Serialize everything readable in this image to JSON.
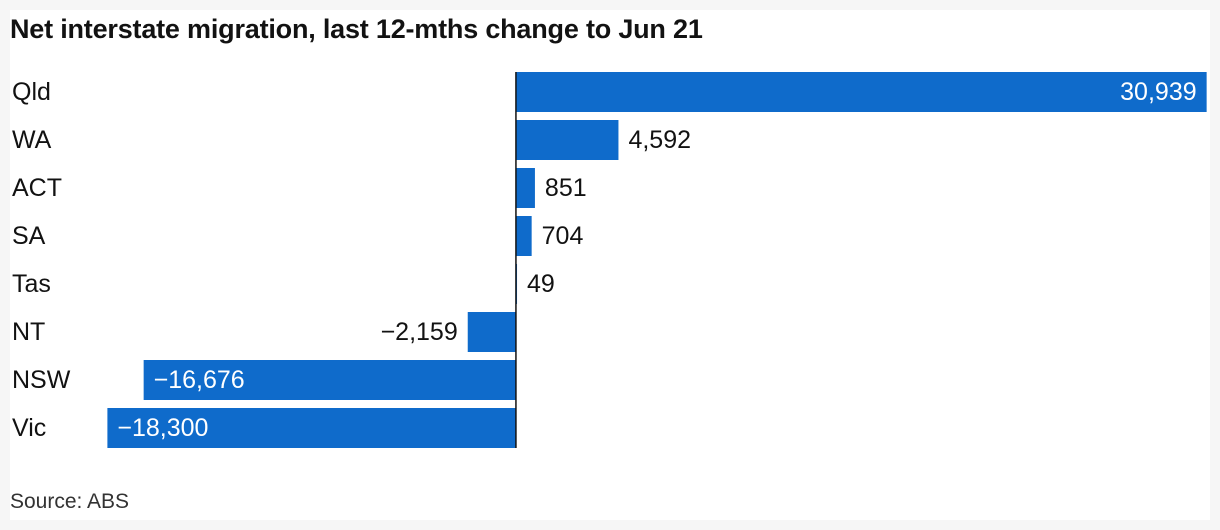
{
  "chart_data": {
    "type": "bar",
    "orientation": "horizontal",
    "title": "Net interstate migration, last 12-mths change to Jun 21",
    "source": "Source: ABS",
    "categories": [
      "Qld",
      "WA",
      "ACT",
      "SA",
      "Tas",
      "NT",
      "NSW",
      "Vic"
    ],
    "values": [
      30939,
      4592,
      851,
      704,
      49,
      -2159,
      -16676,
      -18300
    ],
    "labels": [
      "30,939",
      "4,592",
      "851",
      "704",
      "49",
      "−2,159",
      "−16,676",
      "−18,300"
    ],
    "xlim": [
      -18900,
      31000
    ],
    "xlabel": "",
    "ylabel": "",
    "grid": false,
    "legend": "none",
    "colors": {
      "bar": "#0f6bcb",
      "axis": "#121212",
      "text": "#121212",
      "label_inside": "#ffffff"
    }
  }
}
